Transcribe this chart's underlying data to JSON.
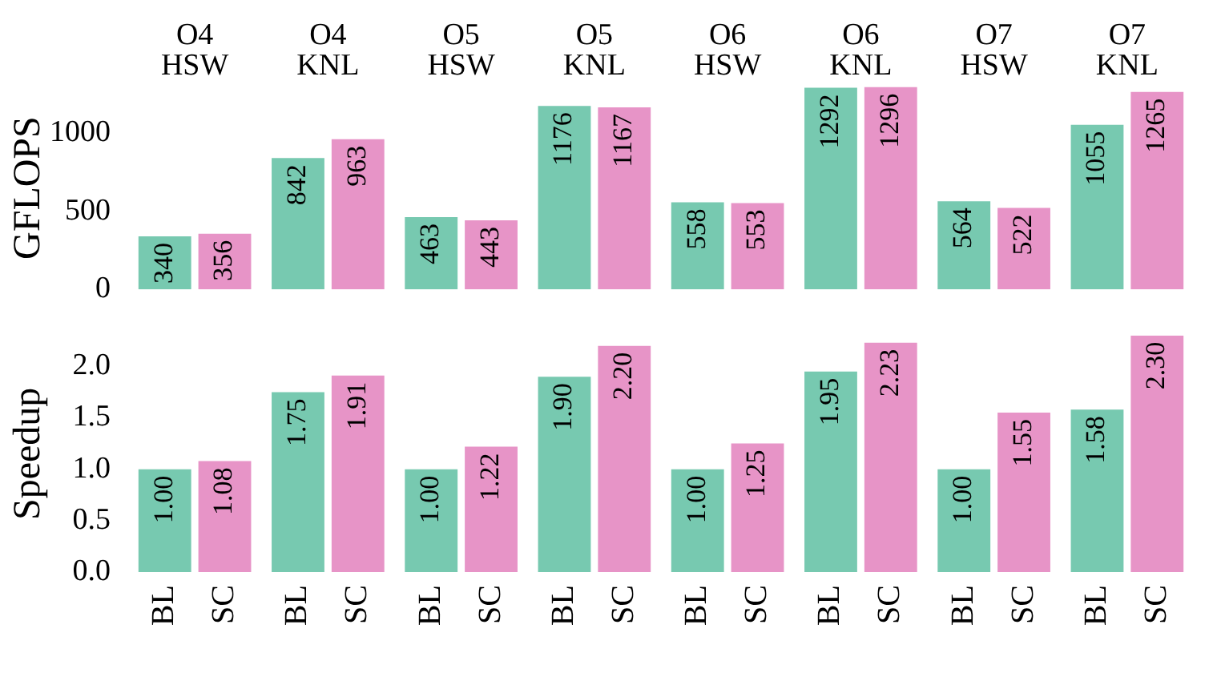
{
  "chart_data": [
    {
      "type": "bar",
      "ylabel": "GFLOPS",
      "categories": [
        "O4\nHSW",
        "O4\nKNL",
        "O5\nHSW",
        "O5\nKNL",
        "O6\nHSW",
        "O6\nKNL",
        "O7\nHSW",
        "O7\nKNL"
      ],
      "series": [
        {
          "color": "#77c9b0",
          "values": [
            340,
            842,
            463,
            1176,
            558,
            1292,
            564,
            1055
          ]
        },
        {
          "color": "#e794c7",
          "values": [
            356,
            963,
            443,
            1167,
            553,
            1296,
            522,
            1265
          ]
        }
      ],
      "ylim": [
        0,
        1300
      ],
      "yticks": [
        0,
        500,
        1000
      ],
      "data_labels": true
    },
    {
      "type": "bar",
      "ylabel": "Speedup",
      "categories": [
        null,
        null,
        null,
        null,
        null,
        null,
        null,
        null
      ],
      "series": [
        {
          "name": "BL",
          "color": "#77c9b0",
          "values": [
            1.0,
            1.75,
            1.0,
            1.9,
            1.0,
            1.95,
            1.0,
            1.58
          ],
          "value_labels": [
            "1.00",
            "1.75",
            "1.00",
            "1.90",
            "1.00",
            "1.95",
            "1.00",
            "1.58"
          ]
        },
        {
          "name": "SC",
          "color": "#e794c7",
          "values": [
            1.08,
            1.91,
            1.22,
            2.2,
            1.25,
            2.23,
            1.55,
            2.3
          ],
          "value_labels": [
            "1.08",
            "1.91",
            "1.22",
            "2.20",
            "1.25",
            "2.23",
            "1.55",
            "2.30"
          ]
        }
      ],
      "ylim": [
        0,
        2.3
      ],
      "yticks": [
        {
          "value": 0,
          "label": "0.0"
        },
        {
          "value": 0.5,
          "label": "0.5"
        },
        {
          "value": 1,
          "label": "1.0"
        },
        {
          "value": 1.5,
          "label": "1.5"
        },
        {
          "value": 2,
          "label": "2.0"
        }
      ]
    }
  ]
}
